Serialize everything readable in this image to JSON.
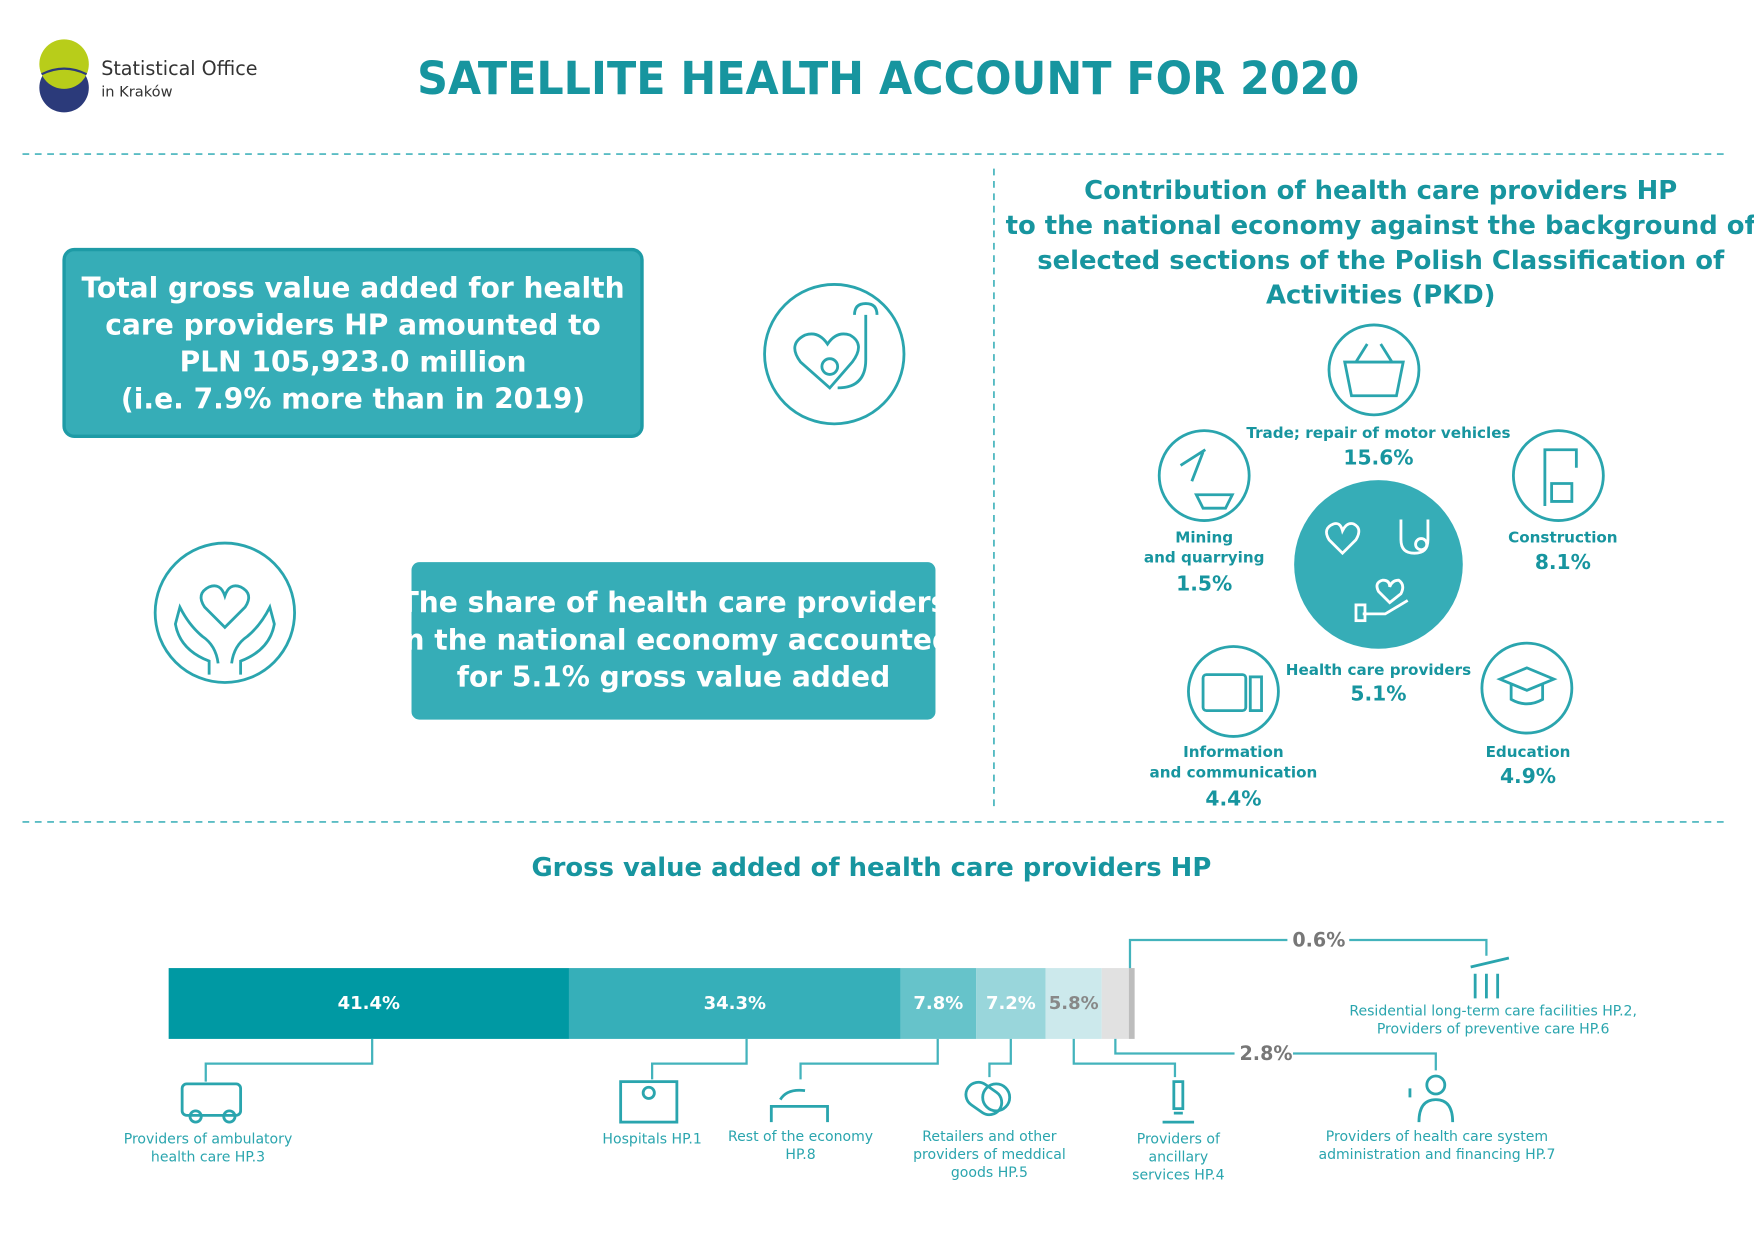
{
  "header": {
    "office": [
      "Statistical Office",
      "in Kraków"
    ],
    "title": "SATELLITE HEALTH ACCOUNT FOR 2020"
  },
  "box_total": {
    "lines": [
      "Total gross value added for health",
      "care providers HP amounted to",
      "PLN 105,923.0 million",
      "(i.e. 7.9% more than in 2019)"
    ]
  },
  "box_share": {
    "lines": [
      "The share of health care providers",
      "in the national economy accounted",
      "for 5.1% gross value added"
    ]
  },
  "contribution": {
    "title_lines": [
      "Contribution of health care providers HP",
      "to the national economy against the background of",
      "selected sections of the Polish Classification of",
      "Activities (PKD)"
    ],
    "items": [
      {
        "name_lines": [
          "Trade; repair of motor vehicles"
        ],
        "value": "15.6%"
      },
      {
        "name_lines": [
          "Mining",
          "and quarrying"
        ],
        "value": "1.5%"
      },
      {
        "name_lines": [
          "Construction"
        ],
        "value": "8.1%"
      },
      {
        "name_lines": [
          "Health care providers"
        ],
        "value": "5.1%"
      },
      {
        "name_lines": [
          "Information",
          "and communication"
        ],
        "value": "4.4%"
      },
      {
        "name_lines": [
          "Education"
        ],
        "value": "4.9%"
      }
    ]
  },
  "chart_data": {
    "type": "bar",
    "stacked": true,
    "orientation": "horizontal",
    "title": "Gross value added of health care providers HP",
    "categories": [
      null
    ],
    "xlim": [
      0,
      100
    ],
    "series": [
      {
        "name": "Providers of ambulatory health care HP.3",
        "color": "#0099a3",
        "values": [
          41.4
        ],
        "value_labels": [
          "41.4%"
        ]
      },
      {
        "name": "Hospitals HP.1",
        "color": "#36afb9",
        "values": [
          34.3
        ],
        "value_labels": [
          "34.3%"
        ]
      },
      {
        "name": "Rest of the economy HP.8",
        "color": "#66c3ca",
        "values": [
          7.8
        ],
        "value_labels": [
          "7.8%"
        ]
      },
      {
        "name": "Retailers and other providers of meddical goods HP.5",
        "color": "#99d6db",
        "values": [
          7.2
        ],
        "value_labels": [
          "7.2%"
        ]
      },
      {
        "name": "Providers of ancillary services HP.4",
        "color": "#cce9ec",
        "values": [
          5.8
        ],
        "value_labels": [
          "5.8%"
        ]
      },
      {
        "name": "Providers of health care system administration and financing HP.7",
        "color": "#e1e1e1",
        "values": [
          2.8
        ],
        "value_labels": [
          "2.8%"
        ]
      },
      {
        "name": "Residential long-term care facilities HP.2, Providers of preventive care HP.6",
        "color": "#bdbdbd",
        "values": [
          0.6
        ],
        "value_labels": [
          "0.6%"
        ]
      }
    ]
  }
}
